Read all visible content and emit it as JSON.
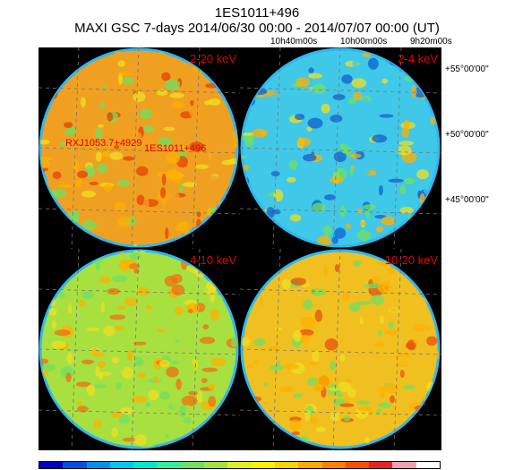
{
  "title": "1ES1011+496",
  "subtitle": "MAXI GSC 7-days 2014/06/30 00:00 - 2014/07/07 00:00 (UT)",
  "ra_labels": [
    "10h40m00s",
    "10h00m00s",
    "9h20m00s"
  ],
  "dec_labels": [
    "+55°00'00\"",
    "+50°00'00\"",
    "+45°00'00\""
  ],
  "panels": [
    {
      "band": "2-20 keV",
      "base": "#f0a020",
      "accent": "#e84000",
      "sources": [
        "RXJ1053.7+4929",
        "1ES1011+496"
      ]
    },
    {
      "band": "2-4 keV",
      "base": "#40c8e8",
      "accent": "#1060d0",
      "sources": []
    },
    {
      "band": "4-10 keV",
      "base": "#a8e040",
      "accent": "#f07010",
      "sources": []
    },
    {
      "band": "10-20 keV",
      "base": "#f0c020",
      "accent": "#e85010",
      "sources": []
    }
  ],
  "colorbar": [
    "#0000c0",
    "#0050e0",
    "#0090f0",
    "#00c8f0",
    "#00e8d0",
    "#30f0a0",
    "#70e060",
    "#a8e040",
    "#e0f020",
    "#fff000",
    "#ffd000",
    "#ffa800",
    "#ff8000",
    "#f85000",
    "#e82020",
    "#f0a0b0",
    "#ffffff"
  ]
}
